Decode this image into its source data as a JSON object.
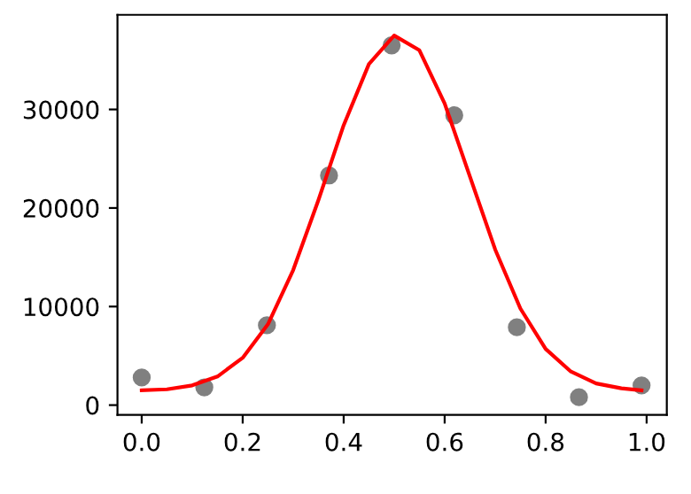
{
  "chart_data": {
    "type": "scatter",
    "xlim": [
      -0.048,
      1.04
    ],
    "ylim": [
      -1000,
      39600
    ],
    "xticks": [
      {
        "value": 0,
        "label": "0.0"
      },
      0.2,
      0.4,
      0.6,
      0.8,
      {
        "value": 1,
        "label": "1.0"
      }
    ],
    "yticks": [
      0,
      10000,
      20000,
      30000
    ],
    "grid": false,
    "legend": false,
    "series": [
      {
        "color": "#808080",
        "marker": "circle",
        "x": [
          0,
          0.124,
          0.248,
          0.371,
          0.495,
          0.619,
          0.743,
          0.866,
          0.99
        ],
        "values": [
          2800,
          1800,
          8100,
          23300,
          36500,
          29400,
          7900,
          800,
          2000
        ]
      },
      {
        "type": "line",
        "color": "#ff0000",
        "line_style": "solid",
        "x": [
          0,
          0.05,
          0.1,
          0.15,
          0.2,
          0.25,
          0.3,
          0.35,
          0.4,
          0.45,
          0.5,
          0.55,
          0.6,
          0.65,
          0.7,
          0.75,
          0.8,
          0.85,
          0.9,
          0.95,
          0.99
        ],
        "values": [
          1500,
          1600,
          2000,
          2900,
          4800,
          8200,
          13700,
          20800,
          28400,
          34600,
          37500,
          36000,
          30600,
          23200,
          15800,
          9800,
          5700,
          3400,
          2200,
          1700,
          1500
        ]
      }
    ]
  }
}
